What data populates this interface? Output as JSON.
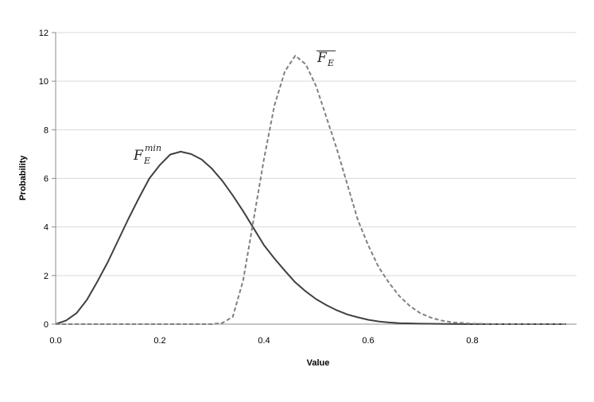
{
  "chart_data": {
    "type": "line",
    "xlabel": "Value",
    "ylabel": "Probability",
    "xlim": [
      0,
      1
    ],
    "ylim": [
      0,
      12
    ],
    "x_ticks": [
      "0.0",
      "0.2",
      "0.4",
      "0.6",
      "0.8"
    ],
    "y_ticks": [
      "0",
      "2",
      "4",
      "6",
      "8",
      "10",
      "12"
    ],
    "grid": "horizontal",
    "legend": "none",
    "series": [
      {
        "label_main": "F",
        "label_sub": "E",
        "label_sup": "min",
        "style": "solid",
        "color": "#404040",
        "points": [
          [
            0.0,
            0.0
          ],
          [
            0.02,
            0.15
          ],
          [
            0.04,
            0.45
          ],
          [
            0.06,
            1.0
          ],
          [
            0.08,
            1.75
          ],
          [
            0.1,
            2.55
          ],
          [
            0.12,
            3.45
          ],
          [
            0.14,
            4.35
          ],
          [
            0.16,
            5.2
          ],
          [
            0.18,
            6.0
          ],
          [
            0.2,
            6.55
          ],
          [
            0.22,
            6.98
          ],
          [
            0.24,
            7.1
          ],
          [
            0.26,
            7.0
          ],
          [
            0.28,
            6.78
          ],
          [
            0.3,
            6.4
          ],
          [
            0.32,
            5.9
          ],
          [
            0.34,
            5.3
          ],
          [
            0.36,
            4.65
          ],
          [
            0.38,
            3.95
          ],
          [
            0.4,
            3.25
          ],
          [
            0.42,
            2.7
          ],
          [
            0.44,
            2.2
          ],
          [
            0.46,
            1.72
          ],
          [
            0.48,
            1.35
          ],
          [
            0.5,
            1.03
          ],
          [
            0.52,
            0.78
          ],
          [
            0.54,
            0.57
          ],
          [
            0.56,
            0.4
          ],
          [
            0.58,
            0.28
          ],
          [
            0.6,
            0.18
          ],
          [
            0.62,
            0.11
          ],
          [
            0.64,
            0.07
          ],
          [
            0.66,
            0.04
          ],
          [
            0.7,
            0.02
          ],
          [
            0.75,
            0.01
          ],
          [
            0.8,
            0.0
          ],
          [
            0.9,
            0.0
          ],
          [
            0.98,
            0.0
          ]
        ]
      },
      {
        "label_main": "F",
        "label_sub": "E",
        "overline": true,
        "style": "dashed",
        "color": "#808080",
        "points": [
          [
            0.0,
            0.0
          ],
          [
            0.1,
            0.0
          ],
          [
            0.2,
            0.0
          ],
          [
            0.3,
            0.0
          ],
          [
            0.32,
            0.05
          ],
          [
            0.34,
            0.3
          ],
          [
            0.36,
            1.8
          ],
          [
            0.38,
            4.3
          ],
          [
            0.4,
            6.8
          ],
          [
            0.42,
            9.0
          ],
          [
            0.44,
            10.4
          ],
          [
            0.46,
            11.05
          ],
          [
            0.48,
            10.7
          ],
          [
            0.5,
            9.8
          ],
          [
            0.52,
            8.5
          ],
          [
            0.54,
            7.2
          ],
          [
            0.56,
            5.75
          ],
          [
            0.58,
            4.3
          ],
          [
            0.6,
            3.25
          ],
          [
            0.62,
            2.35
          ],
          [
            0.64,
            1.7
          ],
          [
            0.66,
            1.15
          ],
          [
            0.68,
            0.75
          ],
          [
            0.7,
            0.45
          ],
          [
            0.72,
            0.27
          ],
          [
            0.74,
            0.15
          ],
          [
            0.76,
            0.08
          ],
          [
            0.8,
            0.02
          ],
          [
            0.85,
            0.0
          ],
          [
            0.9,
            0.0
          ],
          [
            0.98,
            0.0
          ]
        ]
      }
    ]
  }
}
